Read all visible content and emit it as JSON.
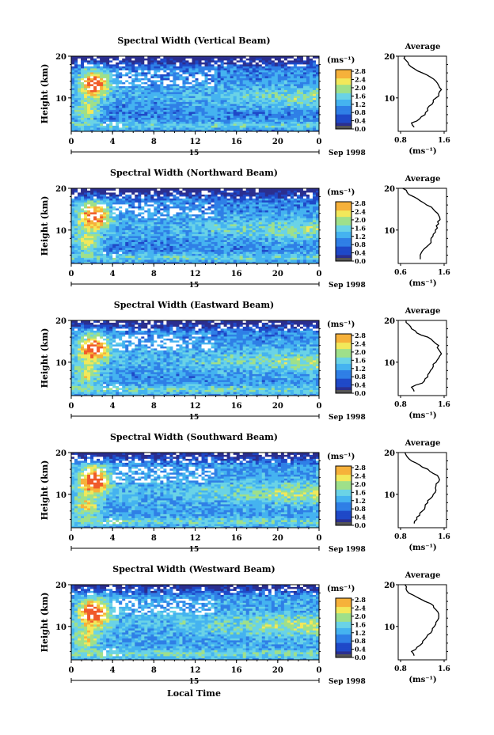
{
  "figure": {
    "xlabel": "Local Time",
    "date_label": "Sep 1998",
    "day_label": "15",
    "colorbar_unit": "(ms⁻¹)",
    "colorbar_ticks": [
      "0.0",
      "0.4",
      "0.8",
      "1.2",
      "1.6",
      "2.0",
      "2.4",
      "2.8"
    ],
    "colorbar_colors": [
      "#2b2f8f",
      "#1f49c8",
      "#2f7fe6",
      "#45b3f0",
      "#6ad3e6",
      "#9fe08a",
      "#f2e85a",
      "#f6b13a",
      "#f05a2a"
    ],
    "panel_xticks": [
      "0",
      "4",
      "8",
      "12",
      "16",
      "20",
      "0"
    ],
    "panel_yticks": [
      "20",
      "10"
    ],
    "panel_ylabel": "Height (km)",
    "avg_title": "Average",
    "avg_unit": "(ms⁻¹)",
    "avg_yticks": [
      "20",
      "10"
    ]
  },
  "chart_data": [
    {
      "type": "heatmap",
      "title": "Spectral Width (Vertical Beam)",
      "xlabel": "",
      "ylabel": "Height (km)",
      "xlim": [
        0,
        24
      ],
      "ylim": [
        2,
        20
      ],
      "colorbar_range": [
        0.0,
        2.8
      ],
      "average_profile": {
        "title": "Average",
        "xticks": [
          "0.8",
          "1.6"
        ],
        "xlim": [
          0.8,
          1.6
        ],
        "height": [
          3,
          4,
          5,
          6,
          7,
          8,
          9,
          10,
          11,
          12,
          13,
          14,
          15,
          16,
          17,
          18,
          19,
          20
        ],
        "value": [
          1.05,
          1.0,
          1.15,
          1.25,
          1.3,
          1.32,
          1.4,
          1.45,
          1.5,
          1.55,
          1.5,
          1.45,
          1.35,
          1.2,
          1.05,
          0.95,
          0.9,
          0.88
        ]
      }
    },
    {
      "type": "heatmap",
      "title": "Spectral Width (Northward Beam)",
      "xlabel": "",
      "ylabel": "Height (km)",
      "xlim": [
        0,
        24
      ],
      "ylim": [
        2,
        20
      ],
      "colorbar_range": [
        0.0,
        2.8
      ],
      "average_profile": {
        "title": "Average",
        "xticks": [
          "0.6",
          "1.6"
        ],
        "xlim": [
          0.6,
          1.6
        ],
        "height": [
          3,
          4,
          5,
          6,
          7,
          8,
          9,
          10,
          11,
          12,
          13,
          14,
          15,
          16,
          17,
          18,
          19,
          20
        ],
        "value": [
          1.05,
          1.05,
          1.1,
          1.2,
          1.3,
          1.3,
          1.35,
          1.4,
          1.42,
          1.45,
          1.5,
          1.45,
          1.35,
          1.2,
          1.05,
          0.9,
          0.75,
          0.65
        ]
      }
    },
    {
      "type": "heatmap",
      "title": "Spectral Width (Eastward Beam)",
      "xlabel": "",
      "ylabel": "Height (km)",
      "xlim": [
        0,
        24
      ],
      "ylim": [
        2,
        20
      ],
      "colorbar_range": [
        0.0,
        2.8
      ],
      "average_profile": {
        "title": "Average",
        "xticks": [
          "0.8",
          "1.6"
        ],
        "xlim": [
          0.8,
          1.6
        ],
        "height": [
          3,
          4,
          5,
          6,
          7,
          8,
          9,
          10,
          11,
          12,
          13,
          14,
          15,
          16,
          17,
          18,
          19,
          20
        ],
        "value": [
          1.05,
          1.0,
          1.2,
          1.25,
          1.3,
          1.35,
          1.4,
          1.45,
          1.5,
          1.55,
          1.5,
          1.5,
          1.4,
          1.3,
          1.1,
          1.0,
          0.95,
          0.9
        ]
      }
    },
    {
      "type": "heatmap",
      "title": "Spectral Width (Southward Beam)",
      "xlabel": "",
      "ylabel": "Height (km)",
      "xlim": [
        0,
        24
      ],
      "ylim": [
        2,
        20
      ],
      "colorbar_range": [
        0.0,
        2.8
      ],
      "average_profile": {
        "title": "Average",
        "xticks": [
          "0.8",
          "1.6"
        ],
        "xlim": [
          0.8,
          1.6
        ],
        "height": [
          3,
          4,
          5,
          6,
          7,
          8,
          9,
          10,
          11,
          12,
          13,
          14,
          15,
          16,
          17,
          18,
          19,
          20
        ],
        "value": [
          1.05,
          1.1,
          1.15,
          1.2,
          1.25,
          1.3,
          1.35,
          1.4,
          1.45,
          1.45,
          1.5,
          1.5,
          1.4,
          1.3,
          1.15,
          1.0,
          0.92,
          0.88
        ]
      }
    },
    {
      "type": "heatmap",
      "title": "Spectral Width (Westward Beam)",
      "xlabel": "",
      "ylabel": "Height (km)",
      "xlim": [
        0,
        24
      ],
      "ylim": [
        2,
        20
      ],
      "colorbar_range": [
        0.0,
        2.8
      ],
      "average_profile": {
        "title": "Average",
        "xticks": [
          "0.8",
          "1.6"
        ],
        "xlim": [
          0.8,
          1.6
        ],
        "height": [
          3,
          4,
          5,
          6,
          7,
          8,
          9,
          10,
          11,
          12,
          13,
          14,
          15,
          16,
          17,
          18,
          19,
          20
        ],
        "value": [
          1.05,
          1.0,
          1.1,
          1.2,
          1.25,
          1.3,
          1.38,
          1.42,
          1.45,
          1.5,
          1.5,
          1.45,
          1.4,
          1.25,
          1.1,
          0.95,
          0.9,
          0.88
        ]
      }
    }
  ]
}
